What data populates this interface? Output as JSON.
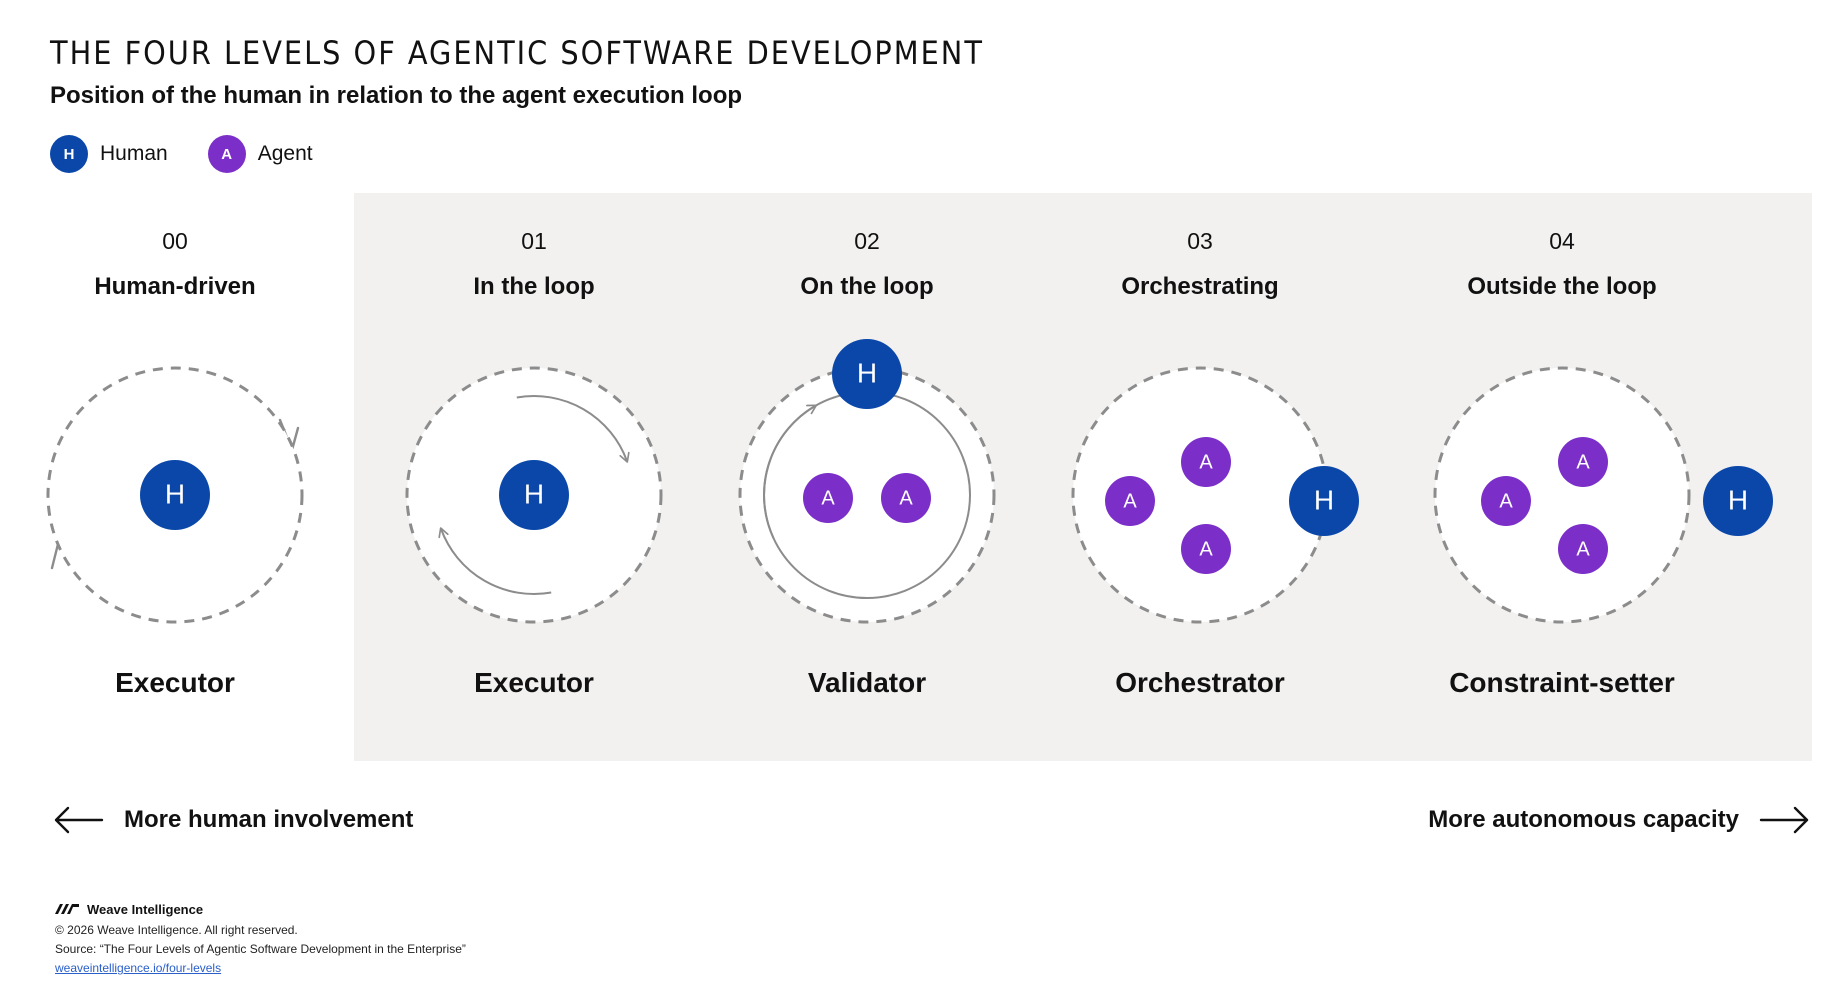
{
  "header": {
    "title": "THE FOUR LEVELS OF AGENTIC SOFTWARE DEVELOPMENT",
    "subtitle": "Position of the human in relation to the agent execution loop"
  },
  "legend": [
    {
      "symbol": "H",
      "label": "Human",
      "color": "#0a47a9"
    },
    {
      "symbol": "A",
      "label": "Agent",
      "color": "#7b2fc8"
    }
  ],
  "colors": {
    "human": "#0a47a9",
    "agent": "#7b2fc8",
    "panel": "#f2f1f0",
    "loop": "#8c8c8c",
    "link": "#2b5fc9"
  },
  "levels": [
    {
      "number": "00",
      "name": "Human-driven",
      "role": "Executor",
      "human_symbol": "H",
      "agent_count": 0
    },
    {
      "number": "01",
      "name": "In the loop",
      "role": "Executor",
      "human_symbol": "H",
      "agent_count": 0
    },
    {
      "number": "02",
      "name": "On the loop",
      "role": "Validator",
      "human_symbol": "H",
      "agent_symbol": "A",
      "agent_count": 2
    },
    {
      "number": "03",
      "name": "Orchestrating",
      "role": "Orchestrator",
      "human_symbol": "H",
      "agent_symbol": "A",
      "agent_count": 3
    },
    {
      "number": "04",
      "name": "Outside the loop",
      "role": "Constraint-setter",
      "human_symbol": "H",
      "agent_symbol": "A",
      "agent_count": 3
    }
  ],
  "axis": {
    "left_label": "More human involvement",
    "right_label": "More autonomous capacity"
  },
  "footer": {
    "brand": "Weave Intelligence",
    "copyright": "© 2026 Weave Intelligence. All right reserved.",
    "source": "Source: “The Four Levels of Agentic Software Development in the Enterprise”",
    "link": "weaveintelligence.io/four-levels"
  }
}
